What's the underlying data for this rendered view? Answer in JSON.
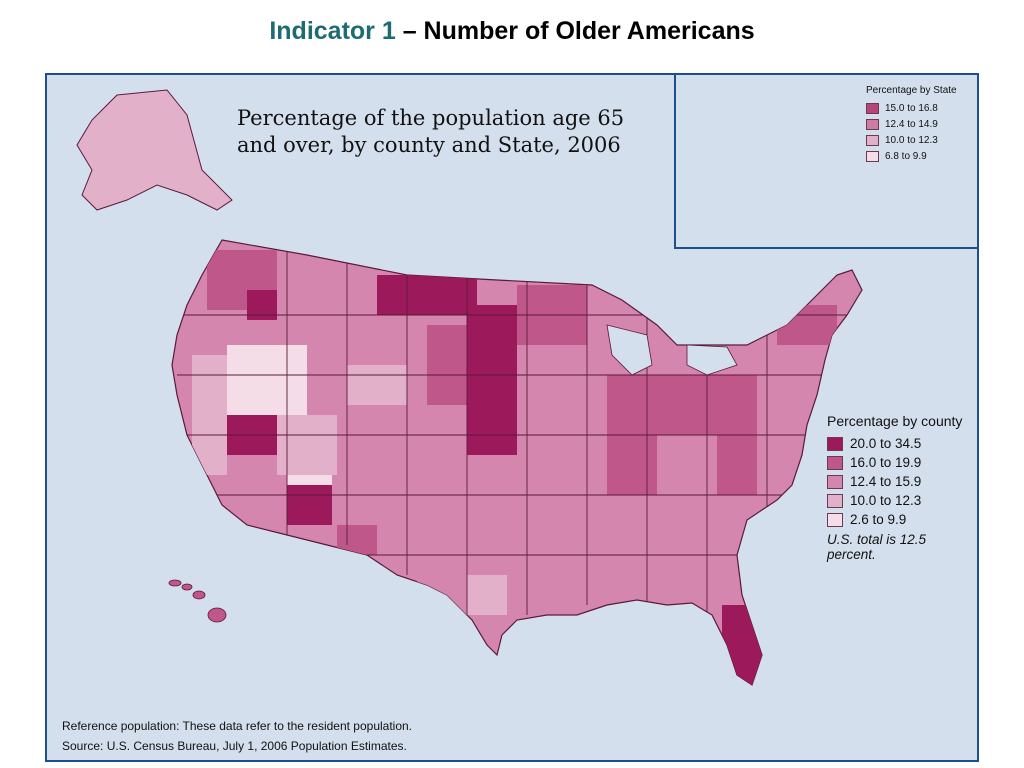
{
  "slide_title": {
    "accent": "Indicator 1",
    "rest": " – Number of Older Americans"
  },
  "map": {
    "heading_line1": "Percentage of the population age 65",
    "heading_line2": "and over, by county and State, 2006",
    "colors": {
      "background": "#d4dfed",
      "frame": "#1d4e8f",
      "c1": "#9c1a5b",
      "c2": "#c0578a",
      "c3": "#d486ae",
      "c4": "#e2b0c8",
      "c5": "#f4dde7"
    },
    "county_legend": {
      "title": "Percentage by county",
      "items": [
        {
          "label": "20.0 to 34.5",
          "color": "#9c1a5b"
        },
        {
          "label": "16.0 to 19.9",
          "color": "#c0578a"
        },
        {
          "label": "12.4 to 15.9",
          "color": "#d486ae"
        },
        {
          "label": "10.0 to 12.3",
          "color": "#e2b0c8"
        },
        {
          "label": "2.6 to 9.9",
          "color": "#f4dde7"
        }
      ],
      "note": "U.S. total is 12.5 percent."
    },
    "state_legend": {
      "title": "Percentage by State",
      "items": [
        {
          "label": "15.0 to 16.8",
          "color": "#b8457a"
        },
        {
          "label": "12.4 to 14.9",
          "color": "#cf7ca3"
        },
        {
          "label": "10.0  to 12.3",
          "color": "#e2b0c8"
        },
        {
          "label": "6.8 to 9.9",
          "color": "#f4dde7"
        }
      ]
    },
    "footnote_reference": "Reference population:  These data refer to the resident population.",
    "footnote_source": "Source:  U.S. Census Bureau, July 1, 2006 Population Estimates."
  }
}
